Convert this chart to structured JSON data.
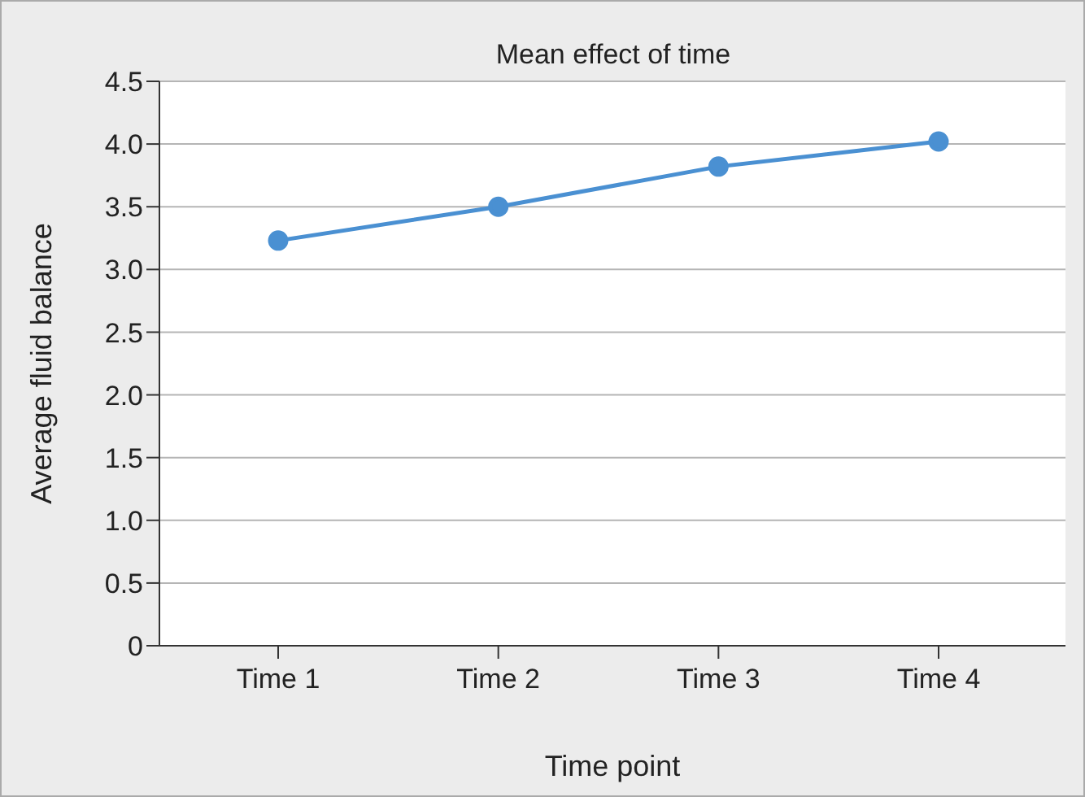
{
  "chart_data": {
    "type": "line",
    "title": "Mean effect of time",
    "xlabel": "Time point",
    "ylabel": "Average fluid balance",
    "categories": [
      "Time 1",
      "Time 2",
      "Time 3",
      "Time 4"
    ],
    "series": [
      {
        "color": "#4a90d2",
        "values": [
          3.23,
          3.5,
          3.82,
          4.02
        ]
      }
    ],
    "ylim": [
      0,
      4.5
    ],
    "yticks": [
      0,
      0.5,
      {
        "value": 1,
        "label": "1.0"
      },
      1.5,
      {
        "value": 2,
        "label": "2.0"
      },
      2.5,
      {
        "value": 3,
        "label": "3.0"
      },
      3.5,
      {
        "value": 4,
        "label": "4.0"
      },
      4.5
    ],
    "grid": "y",
    "marker": "circle",
    "line_style": "solid"
  }
}
